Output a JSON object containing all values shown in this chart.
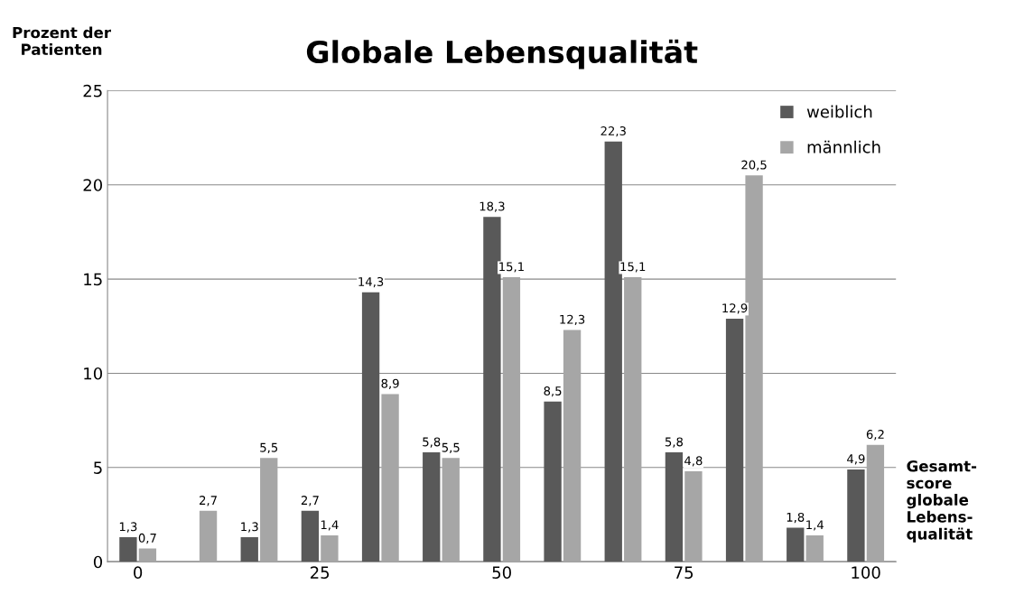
{
  "chart_data": {
    "type": "bar",
    "title": "Globale Lebensqualität",
    "ylabel": "Prozent der\nPatienten",
    "xlabel": "Gesamt-\nscore\nglobale\nLebens-\nqualität",
    "categories": [
      "0",
      null,
      null,
      "25",
      null,
      null,
      "50",
      null,
      null,
      "75",
      null,
      null,
      "100"
    ],
    "series": [
      {
        "name": "weiblich",
        "color": "#595959",
        "values": [
          1.3,
          null,
          1.3,
          2.7,
          14.3,
          5.8,
          18.3,
          8.5,
          22.3,
          5.8,
          12.9,
          1.8,
          4.9
        ],
        "value_labels": [
          "1,3",
          null,
          "1,3",
          "2,7",
          "14,3",
          "5,8",
          "18,3",
          "8,5",
          "22,3",
          "5,8",
          "12,9",
          "1,8",
          "4,9"
        ]
      },
      {
        "name": "männlich",
        "color": "#a6a6a6",
        "values": [
          0.7,
          2.7,
          5.5,
          1.4,
          8.9,
          5.5,
          15.1,
          12.3,
          15.1,
          4.8,
          20.5,
          1.4,
          6.2
        ],
        "value_labels": [
          "0,7",
          "2,7",
          "5,5",
          "1,4",
          "8,9",
          "5,5",
          "15,1",
          "12,3",
          "15,1",
          "4,8",
          "20,5",
          "1,4",
          "6,2"
        ]
      }
    ],
    "ylim": [
      0,
      25
    ],
    "yticks": [
      0,
      5,
      10,
      15,
      20,
      25
    ],
    "grid": "y",
    "legend": "top right"
  }
}
